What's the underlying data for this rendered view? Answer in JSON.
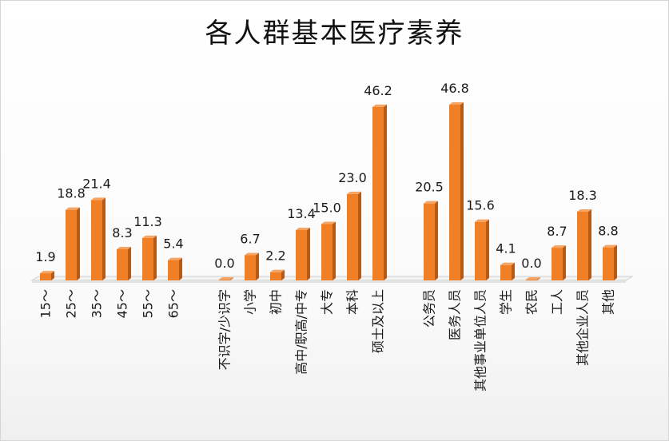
{
  "chart_data": {
    "type": "bar",
    "title": "各人群基本医疗素养",
    "categories": [
      "15～",
      "25～",
      "35～",
      "45～",
      "55～",
      "65～",
      "",
      "不识字/少识字",
      "小学",
      "初中",
      "高中/职高/中专",
      "大专",
      "本科",
      "硕士及以上",
      "",
      "公务员",
      "医务人员",
      "其他事业单位人员",
      "学生",
      "农民",
      "工人",
      "其他企业人员",
      "其他"
    ],
    "values": [
      1.9,
      18.8,
      21.4,
      8.3,
      11.3,
      5.4,
      null,
      0.0,
      6.7,
      2.2,
      13.4,
      15.0,
      23.0,
      46.2,
      null,
      20.5,
      46.8,
      15.6,
      4.1,
      0.0,
      8.7,
      18.3,
      8.8
    ],
    "value_labels": [
      "1.9",
      "18.8",
      "21.4",
      "8.3",
      "11.3",
      "5.4",
      "",
      "0.0",
      "6.7",
      "2.2",
      "13.4",
      "15.0",
      "23.0",
      "46.2",
      "",
      "20.5",
      "46.8",
      "15.6",
      "4.1",
      "0.0",
      "8.7",
      "18.3",
      "8.8"
    ],
    "ylim": [
      0,
      50
    ],
    "grid": false,
    "legend": "none",
    "xlabel": "",
    "ylabel": "",
    "colors": {
      "bar_front": "#f07f26",
      "bar_side": "#b85a14",
      "bar_top": "#f6a463",
      "floor_top": "#f2f2f2",
      "floor_edge": "#cfcfcf"
    }
  }
}
